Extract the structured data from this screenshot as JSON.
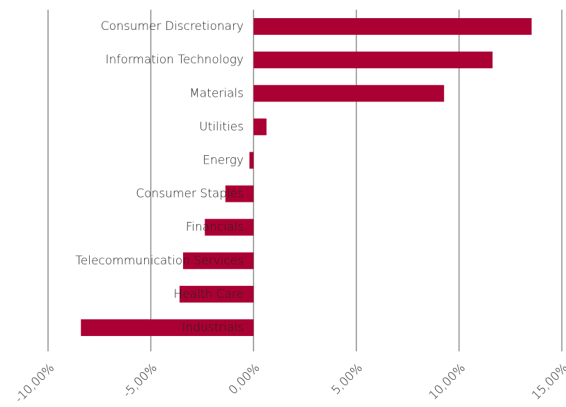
{
  "chart_data": {
    "type": "hbar",
    "categories": [
      "Consumer Discretionary",
      "Information Technology",
      "Materials",
      "Utilities",
      "Energy",
      "Consumer Staples",
      "Financials",
      "Telecommunication Services",
      "Health Care",
      "Industrials"
    ],
    "values": [
      13.53,
      11.63,
      9.27,
      0.63,
      -0.2,
      -1.37,
      -2.37,
      -3.43,
      -3.6,
      -8.4
    ],
    "color": "#ab0033",
    "xlim": [
      -10,
      15
    ],
    "xticks": [
      {
        "value": -10,
        "label": "-10,00%"
      },
      {
        "value": -5,
        "label": "-5,00%"
      },
      {
        "value": 0,
        "label": "0,00%"
      },
      {
        "value": 5,
        "label": "5,00%"
      },
      {
        "value": 10,
        "label": "10,00%"
      },
      {
        "value": 15,
        "label": "15,00%"
      }
    ],
    "grid": true
  }
}
